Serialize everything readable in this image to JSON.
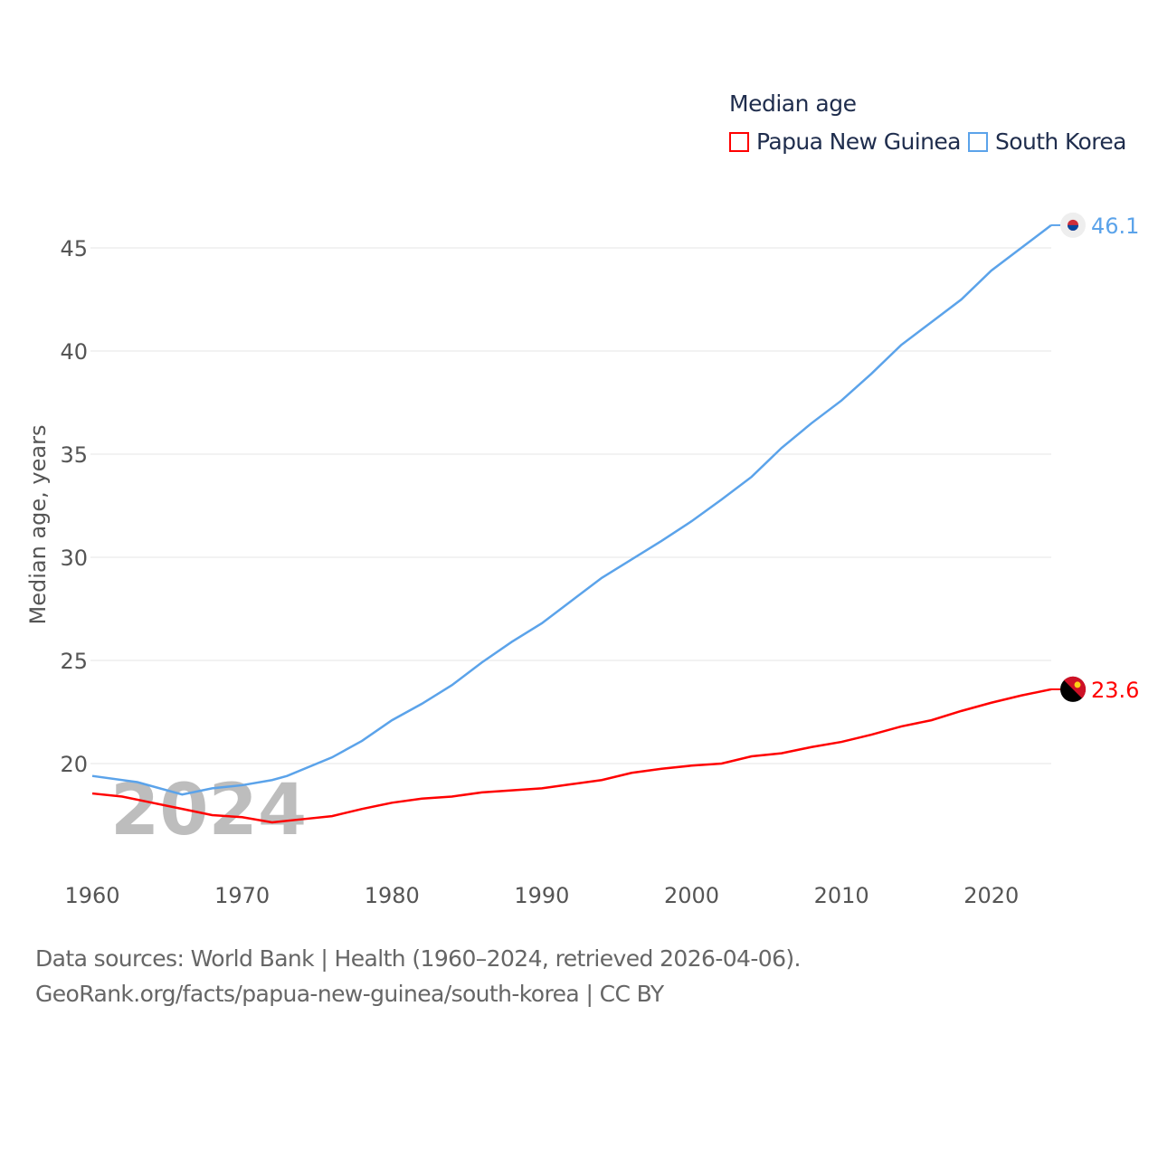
{
  "chart_data": {
    "type": "line",
    "title": "Median age",
    "xlabel": "",
    "ylabel": "Median age, years",
    "xlim": [
      1960,
      2024
    ],
    "ylim": [
      15,
      47
    ],
    "xticks": [
      1960,
      1970,
      1980,
      1990,
      2000,
      2010,
      2020
    ],
    "yticks": [
      20,
      25,
      30,
      35,
      40,
      45
    ],
    "grid": true,
    "legend_placement": "top-right",
    "watermark_year": "2024",
    "series": [
      {
        "name": "Papua New Guinea",
        "color": "#ff0000",
        "end_label": "23.6",
        "x": [
          1960,
          1962,
          1964,
          1966,
          1968,
          1970,
          1972,
          1974,
          1976,
          1978,
          1980,
          1982,
          1984,
          1986,
          1988,
          1990,
          1992,
          1994,
          1996,
          1998,
          2000,
          2002,
          2004,
          2006,
          2008,
          2010,
          2012,
          2014,
          2016,
          2018,
          2020,
          2022,
          2024
        ],
        "y": [
          18.55,
          18.4,
          18.1,
          17.8,
          17.5,
          17.4,
          17.15,
          17.3,
          17.45,
          17.8,
          18.1,
          18.3,
          18.4,
          18.6,
          18.7,
          18.8,
          19.0,
          19.2,
          19.55,
          19.75,
          19.9,
          20.0,
          20.35,
          20.5,
          20.8,
          21.05,
          21.4,
          21.8,
          22.1,
          22.55,
          22.95,
          23.3,
          23.6
        ]
      },
      {
        "name": "South Korea",
        "color": "#5ba3ea",
        "end_label": "46.1",
        "x": [
          1960,
          1963,
          1966,
          1968,
          1970,
          1972,
          1973,
          1976,
          1978,
          1980,
          1982,
          1984,
          1986,
          1988,
          1990,
          1992,
          1994,
          1996,
          1998,
          2000,
          2002,
          2004,
          2006,
          2008,
          2010,
          2012,
          2014,
          2016,
          2018,
          2020,
          2022,
          2024
        ],
        "y": [
          19.4,
          19.1,
          18.5,
          18.8,
          18.95,
          19.2,
          19.4,
          20.3,
          21.1,
          22.1,
          22.9,
          23.8,
          24.9,
          25.9,
          26.8,
          27.9,
          29.0,
          29.9,
          30.8,
          31.75,
          32.8,
          33.9,
          35.3,
          36.5,
          37.6,
          38.9,
          40.3,
          41.4,
          42.5,
          43.9,
          45.0,
          46.1
        ]
      }
    ]
  },
  "footer": {
    "line1": "Data sources: World Bank | Health (1960–2024, retrieved 2026-04-06).",
    "line2": "GeoRank.org/facts/papua-new-guinea/south-korea | CC BY"
  }
}
